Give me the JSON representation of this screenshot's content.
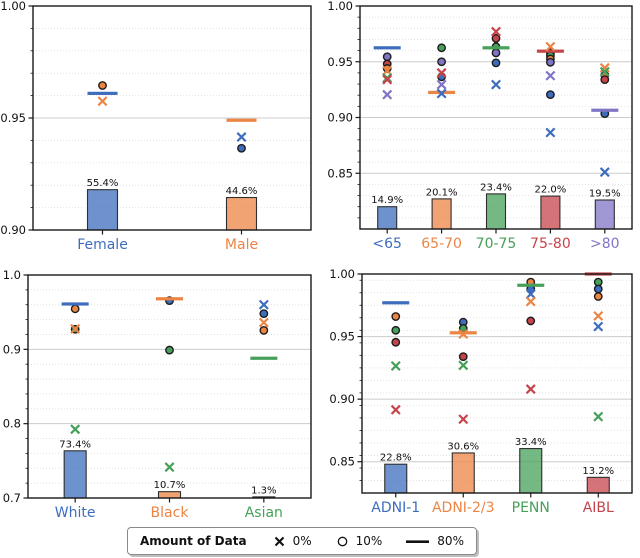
{
  "palette": {
    "blue": "#3E6DBE",
    "orange": "#EC8444",
    "green": "#46A05A",
    "red": "#C5444B",
    "purple": "#7F75C6",
    "axis": "#1a1a1a",
    "marker_edge": "#1c1c1c",
    "bar_edge": "#2e2e2e",
    "grid_major": "#cccccc",
    "grid_minor": "#e2e2e2",
    "text": "#111111"
  },
  "legend": {
    "title": "Amount of Data",
    "items": [
      {
        "marker": "x",
        "label": "0%"
      },
      {
        "marker": "circle",
        "label": "10%"
      },
      {
        "marker": "line",
        "label": "80%"
      }
    ]
  },
  "chart_data": [
    {
      "id": "sex",
      "type": "bar",
      "ylim": [
        0.9,
        1.0
      ],
      "minor_step": 0.01,
      "yticks": [
        {
          "v": 0.9,
          "label": "0.90"
        },
        {
          "v": 0.95,
          "label": "0.95"
        },
        {
          "v": 1.0,
          "label": "1.00"
        }
      ],
      "categories": [
        {
          "label": "Female",
          "color": "blue",
          "bar_pct": 55.4,
          "bar_label": "55.4%",
          "bar_top": 0.918,
          "markers": [
            {
              "t": "o",
              "c": "orange",
              "v": 0.9645
            },
            {
              "t": "line",
              "c": "blue",
              "v": 0.961
            },
            {
              "t": "x",
              "c": "orange",
              "v": 0.9575
            }
          ]
        },
        {
          "label": "Male",
          "color": "orange",
          "bar_pct": 44.6,
          "bar_label": "44.6%",
          "bar_top": 0.9145,
          "markers": [
            {
              "t": "line",
              "c": "orange",
              "v": 0.949
            },
            {
              "t": "x",
              "c": "blue",
              "v": 0.9415
            },
            {
              "t": "o",
              "c": "blue",
              "v": 0.9365
            }
          ]
        }
      ]
    },
    {
      "id": "age",
      "type": "bar",
      "ylim": [
        0.8,
        1.0
      ],
      "minor_step": 0.01,
      "yticks": [
        {
          "v": 0.85,
          "label": "0.85"
        },
        {
          "v": 0.9,
          "label": "0.90"
        },
        {
          "v": 0.95,
          "label": "0.95"
        },
        {
          "v": 1.0,
          "label": "1.00"
        }
      ],
      "categories": [
        {
          "label": "<65",
          "color": "blue",
          "bar_pct": 14.9,
          "bar_label": "14.9%",
          "bar_top": 0.82,
          "markers": [
            {
              "t": "line",
              "c": "blue",
              "v": 0.9625
            },
            {
              "t": "o",
              "c": "purple",
              "v": 0.9545
            },
            {
              "t": "o",
              "c": "red",
              "v": 0.948
            },
            {
              "t": "o",
              "c": "orange",
              "v": 0.944
            },
            {
              "t": "x",
              "c": "orange",
              "v": 0.942
            },
            {
              "t": "x",
              "c": "green",
              "v": 0.9355
            },
            {
              "t": "x",
              "c": "red",
              "v": 0.934
            },
            {
              "t": "x",
              "c": "purple",
              "v": 0.9205
            }
          ]
        },
        {
          "label": "65-70",
          "color": "orange",
          "bar_pct": 20.1,
          "bar_label": "20.1%",
          "bar_top": 0.827,
          "markers": [
            {
              "t": "o",
              "c": "green",
              "v": 0.9625
            },
            {
              "t": "o",
              "c": "purple",
              "v": 0.95
            },
            {
              "t": "x",
              "c": "red",
              "v": 0.94
            },
            {
              "t": "o",
              "c": "blue",
              "v": 0.9365
            },
            {
              "t": "x",
              "c": "purple",
              "v": 0.9295
            },
            {
              "t": "line",
              "c": "orange",
              "v": 0.9225
            },
            {
              "t": "x",
              "c": "blue",
              "v": 0.9215
            }
          ]
        },
        {
          "label": "70-75",
          "color": "green",
          "bar_pct": 23.4,
          "bar_label": "23.4%",
          "bar_top": 0.8315,
          "markers": [
            {
              "t": "x",
              "c": "red",
              "v": 0.977
            },
            {
              "t": "o",
              "c": "red",
              "v": 0.971
            },
            {
              "t": "o",
              "c": "green",
              "v": 0.9635
            },
            {
              "t": "line",
              "c": "green",
              "v": 0.9625
            },
            {
              "t": "o",
              "c": "purple",
              "v": 0.958
            },
            {
              "t": "o",
              "c": "blue",
              "v": 0.949
            },
            {
              "t": "x",
              "c": "blue",
              "v": 0.9295
            }
          ]
        },
        {
          "label": "75-80",
          "color": "red",
          "bar_pct": 22.0,
          "bar_label": "22.0%",
          "bar_top": 0.8295,
          "markers": [
            {
              "t": "x",
              "c": "orange",
              "v": 0.9635
            },
            {
              "t": "line",
              "c": "red",
              "v": 0.9595
            },
            {
              "t": "o",
              "c": "red",
              "v": 0.958
            },
            {
              "t": "o",
              "c": "green",
              "v": 0.9555
            },
            {
              "t": "o",
              "c": "orange",
              "v": 0.9525
            },
            {
              "t": "o",
              "c": "purple",
              "v": 0.9495
            },
            {
              "t": "x",
              "c": "purple",
              "v": 0.9375
            },
            {
              "t": "o",
              "c": "blue",
              "v": 0.9205
            },
            {
              "t": "x",
              "c": "blue",
              "v": 0.8865
            }
          ]
        },
        {
          "label": ">80",
          "color": "purple",
          "bar_pct": 19.5,
          "bar_label": "19.5%",
          "bar_top": 0.826,
          "markers": [
            {
              "t": "x",
              "c": "orange",
              "v": 0.9445
            },
            {
              "t": "x",
              "c": "green",
              "v": 0.941
            },
            {
              "t": "o",
              "c": "orange",
              "v": 0.938
            },
            {
              "t": "o",
              "c": "red",
              "v": 0.934
            },
            {
              "t": "line",
              "c": "purple",
              "v": 0.9065
            },
            {
              "t": "o",
              "c": "blue",
              "v": 0.9035
            },
            {
              "t": "x",
              "c": "blue",
              "v": 0.851
            }
          ]
        }
      ]
    },
    {
      "id": "race",
      "type": "bar",
      "ylim": [
        0.7,
        1.0
      ],
      "minor_step": 0.02,
      "yticks": [
        {
          "v": 0.7,
          "label": "0.7"
        },
        {
          "v": 0.8,
          "label": "0.8"
        },
        {
          "v": 0.9,
          "label": "0.9"
        },
        {
          "v": 1.0,
          "label": "1.0"
        }
      ],
      "categories": [
        {
          "label": "White",
          "color": "blue",
          "bar_pct": 73.4,
          "bar_label": "73.4%",
          "bar_top": 0.7635,
          "markers": [
            {
              "t": "line",
              "c": "blue",
              "v": 0.961
            },
            {
              "t": "o",
              "c": "orange",
              "v": 0.9545
            },
            {
              "t": "x",
              "c": "orange",
              "v": 0.9275
            },
            {
              "t": "o",
              "c": "green",
              "v": 0.927
            },
            {
              "t": "x",
              "c": "green",
              "v": 0.7925
            }
          ]
        },
        {
          "label": "Black",
          "color": "orange",
          "bar_pct": 10.7,
          "bar_label": "10.7%",
          "bar_top": 0.7085,
          "markers": [
            {
              "t": "line",
              "c": "orange",
              "v": 0.968
            },
            {
              "t": "o",
              "c": "blue",
              "v": 0.9655
            },
            {
              "t": "o",
              "c": "green",
              "v": 0.899
            },
            {
              "t": "x",
              "c": "green",
              "v": 0.7415
            }
          ]
        },
        {
          "label": "Asian",
          "color": "green",
          "bar_pct": 1.3,
          "bar_label": "1.3%",
          "bar_top": 0.7015,
          "markers": [
            {
              "t": "x",
              "c": "blue",
              "v": 0.96
            },
            {
              "t": "o",
              "c": "blue",
              "v": 0.948
            },
            {
              "t": "x",
              "c": "orange",
              "v": 0.936
            },
            {
              "t": "o",
              "c": "orange",
              "v": 0.9255
            },
            {
              "t": "line",
              "c": "green",
              "v": 0.888
            }
          ]
        }
      ]
    },
    {
      "id": "site",
      "type": "bar",
      "ylim": [
        0.825,
        1.0
      ],
      "minor_step": 0.01,
      "yticks": [
        {
          "v": 0.85,
          "label": "0.85"
        },
        {
          "v": 0.9,
          "label": "0.90"
        },
        {
          "v": 0.95,
          "label": "0.95"
        },
        {
          "v": 1.0,
          "label": "1.00"
        }
      ],
      "categories": [
        {
          "label": "ADNI-1",
          "color": "blue",
          "bar_pct": 22.8,
          "bar_label": "22.8%",
          "bar_top": 0.848,
          "markers": [
            {
              "t": "line",
              "c": "blue",
              "v": 0.977
            },
            {
              "t": "o",
              "c": "orange",
              "v": 0.966
            },
            {
              "t": "o",
              "c": "green",
              "v": 0.955
            },
            {
              "t": "o",
              "c": "red",
              "v": 0.9455
            },
            {
              "t": "x",
              "c": "green",
              "v": 0.9265
            },
            {
              "t": "x",
              "c": "red",
              "v": 0.8915
            }
          ]
        },
        {
          "label": "ADNI-2/3",
          "color": "orange",
          "bar_pct": 30.6,
          "bar_label": "30.6%",
          "bar_top": 0.857,
          "markers": [
            {
              "t": "o",
              "c": "blue",
              "v": 0.9615
            },
            {
              "t": "o",
              "c": "green",
              "v": 0.9565
            },
            {
              "t": "line",
              "c": "orange",
              "v": 0.953
            },
            {
              "t": "x",
              "c": "orange",
              "v": 0.952
            },
            {
              "t": "o",
              "c": "red",
              "v": 0.934
            },
            {
              "t": "x",
              "c": "green",
              "v": 0.927
            },
            {
              "t": "x",
              "c": "red",
              "v": 0.884
            }
          ]
        },
        {
          "label": "PENN",
          "color": "green",
          "bar_pct": 33.4,
          "bar_label": "33.4%",
          "bar_top": 0.8605,
          "markers": [
            {
              "t": "o",
              "c": "orange",
              "v": 0.9935
            },
            {
              "t": "line",
              "c": "green",
              "v": 0.991
            },
            {
              "t": "o",
              "c": "blue",
              "v": 0.988
            },
            {
              "t": "x",
              "c": "blue",
              "v": 0.984
            },
            {
              "t": "x",
              "c": "orange",
              "v": 0.978
            },
            {
              "t": "o",
              "c": "red",
              "v": 0.9625
            },
            {
              "t": "x",
              "c": "red",
              "v": 0.908
            }
          ]
        },
        {
          "label": "AIBL",
          "color": "red",
          "bar_pct": 13.2,
          "bar_label": "13.2%",
          "bar_top": 0.8375,
          "markers": [
            {
              "t": "line",
              "c": "red",
              "v": 1.0
            },
            {
              "t": "o",
              "c": "green",
              "v": 0.9935
            },
            {
              "t": "o",
              "c": "blue",
              "v": 0.988
            },
            {
              "t": "o",
              "c": "orange",
              "v": 0.982
            },
            {
              "t": "x",
              "c": "orange",
              "v": 0.9665
            },
            {
              "t": "x",
              "c": "blue",
              "v": 0.958
            },
            {
              "t": "x",
              "c": "green",
              "v": 0.886
            }
          ]
        }
      ]
    }
  ]
}
